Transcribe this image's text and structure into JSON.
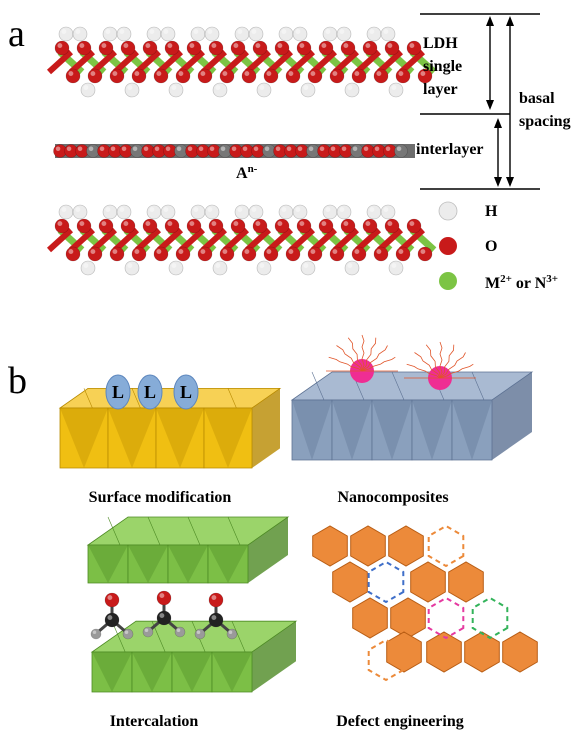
{
  "panel_a": {
    "letter": "a",
    "ldh_label_lines": [
      "LDH",
      "single",
      "layer"
    ],
    "basal_label_lines": [
      "basal",
      "spacing"
    ],
    "interlayer_label": "interlayer",
    "anion_base": "A",
    "anion_sup": "n-",
    "legend": [
      {
        "label": "H",
        "color": "#ececec"
      },
      {
        "label": "O",
        "color": "#c81a1a"
      },
      {
        "label_base": "M",
        "label_sup1": "2+",
        "label_mid": " or N",
        "label_sup2": "3+",
        "color": "#7cc444"
      }
    ]
  },
  "panel_b": {
    "letter": "b",
    "captions": {
      "surface": "Surface modification",
      "nano": "Nanocomposites",
      "intercalation": "Intercalation",
      "defect": "Defect engineering"
    },
    "ligand_label": "L"
  },
  "colors": {
    "oxygen": "#c81a1a",
    "hydrogen": "#ececec",
    "metal": "#7cc444",
    "gray_atom": "#777777",
    "gold": "#f0bf12",
    "steel": "#8aa0bd",
    "green_poly": "#7cbf46",
    "orange_poly": "#ec8a3a",
    "ligand_blue": "#86acd8",
    "magenta": "#ef2d93",
    "defect_orange": "#ec8a3a",
    "defect_blue": "#3f6fc9",
    "defect_pink": "#e53aa0",
    "defect_green": "#33b35a"
  }
}
